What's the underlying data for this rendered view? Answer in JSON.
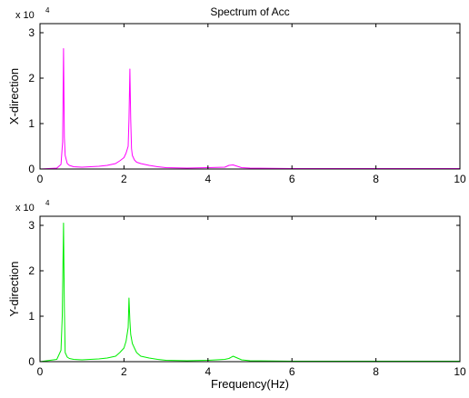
{
  "chart_data": [
    {
      "type": "line",
      "title": "Spectrum of Acc",
      "xlabel": "",
      "ylabel": "X-direction",
      "exponent_label": "x 10",
      "exponent_power": "4",
      "xlim": [
        0,
        10
      ],
      "ylim": [
        0,
        3.2
      ],
      "xticks": [
        "0",
        "2",
        "4",
        "6",
        "8",
        "10"
      ],
      "yticks": [
        "0",
        "1",
        "2",
        "3"
      ],
      "color": "#ff00ff",
      "x": [
        0,
        0.4,
        0.5,
        0.54,
        0.56,
        0.58,
        0.6,
        0.65,
        0.7,
        0.8,
        1.0,
        1.2,
        1.4,
        1.6,
        1.8,
        1.9,
        2.0,
        2.05,
        2.1,
        2.12,
        2.14,
        2.16,
        2.18,
        2.2,
        2.25,
        2.3,
        2.4,
        2.6,
        2.8,
        3.0,
        3.5,
        4.0,
        4.4,
        4.5,
        4.6,
        4.7,
        4.8,
        5.0,
        6.0,
        7.0,
        8.0,
        9.0,
        10.0
      ],
      "y": [
        0,
        0.02,
        0.1,
        0.6,
        2.65,
        0.7,
        0.3,
        0.12,
        0.08,
        0.05,
        0.04,
        0.05,
        0.06,
        0.08,
        0.12,
        0.18,
        0.25,
        0.35,
        0.5,
        1.1,
        2.2,
        1.1,
        0.45,
        0.3,
        0.2,
        0.15,
        0.12,
        0.08,
        0.05,
        0.03,
        0.02,
        0.03,
        0.04,
        0.08,
        0.09,
        0.06,
        0.03,
        0.02,
        0.01,
        0.01,
        0.01,
        0.01,
        0.01
      ]
    },
    {
      "type": "line",
      "title": "",
      "xlabel": "Frequency(Hz)",
      "ylabel": "Y-direction",
      "exponent_label": "x 10",
      "exponent_power": "4",
      "xlim": [
        0,
        10
      ],
      "ylim": [
        0,
        3.2
      ],
      "xticks": [
        "0",
        "2",
        "4",
        "6",
        "8",
        "10"
      ],
      "yticks": [
        "0",
        "1",
        "2",
        "3"
      ],
      "color": "#00ee00",
      "x": [
        0,
        0.4,
        0.5,
        0.53,
        0.56,
        0.58,
        0.6,
        0.65,
        0.7,
        0.8,
        1.0,
        1.2,
        1.4,
        1.6,
        1.8,
        1.9,
        2.0,
        2.05,
        2.1,
        2.12,
        2.14,
        2.16,
        2.18,
        2.2,
        2.25,
        2.3,
        2.4,
        2.6,
        2.8,
        3.0,
        3.5,
        4.0,
        4.4,
        4.5,
        4.6,
        4.7,
        4.8,
        5.0,
        6.0,
        7.0,
        8.0,
        9.0,
        10.0
      ],
      "y": [
        0,
        0.05,
        0.25,
        1.0,
        3.05,
        1.2,
        0.2,
        0.1,
        0.07,
        0.05,
        0.04,
        0.05,
        0.06,
        0.08,
        0.12,
        0.2,
        0.3,
        0.45,
        0.75,
        1.4,
        0.9,
        0.6,
        0.5,
        0.4,
        0.3,
        0.2,
        0.12,
        0.08,
        0.05,
        0.03,
        0.02,
        0.03,
        0.05,
        0.07,
        0.12,
        0.08,
        0.04,
        0.02,
        0.01,
        0.01,
        0.01,
        0.01,
        0.01
      ]
    }
  ]
}
